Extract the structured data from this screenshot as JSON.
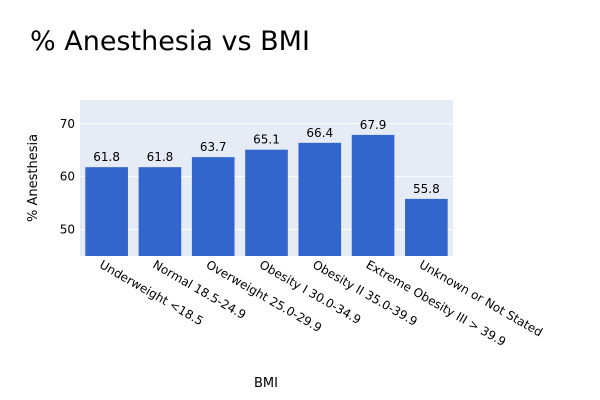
{
  "chart_data": {
    "type": "bar",
    "title": "% Anesthesia vs BMI",
    "xlabel": "BMI",
    "ylabel": "% Anesthesia",
    "categories": [
      "Underweight <18.5",
      "Normal 18.5-24.9",
      "Overweight 25.0-29.9",
      "Obesity I 30.0-34.9",
      "Obesity II 35.0-39.9",
      "Extreme Obesity III > 39.9",
      "Unknown or Not Stated"
    ],
    "values": [
      61.8,
      61.8,
      63.7,
      65.1,
      66.4,
      67.9,
      55.8
    ],
    "value_labels": [
      "61.8",
      "61.8",
      "63.7",
      "65.1",
      "66.4",
      "67.9",
      "55.8"
    ],
    "ylim": [
      45,
      74.5
    ],
    "yticks": [
      50,
      60,
      70
    ],
    "grid": true,
    "colors": {
      "bar": "#3366cc",
      "plot_background": "#e5ecf6",
      "grid": "#ffffff",
      "text": "#000000"
    }
  }
}
